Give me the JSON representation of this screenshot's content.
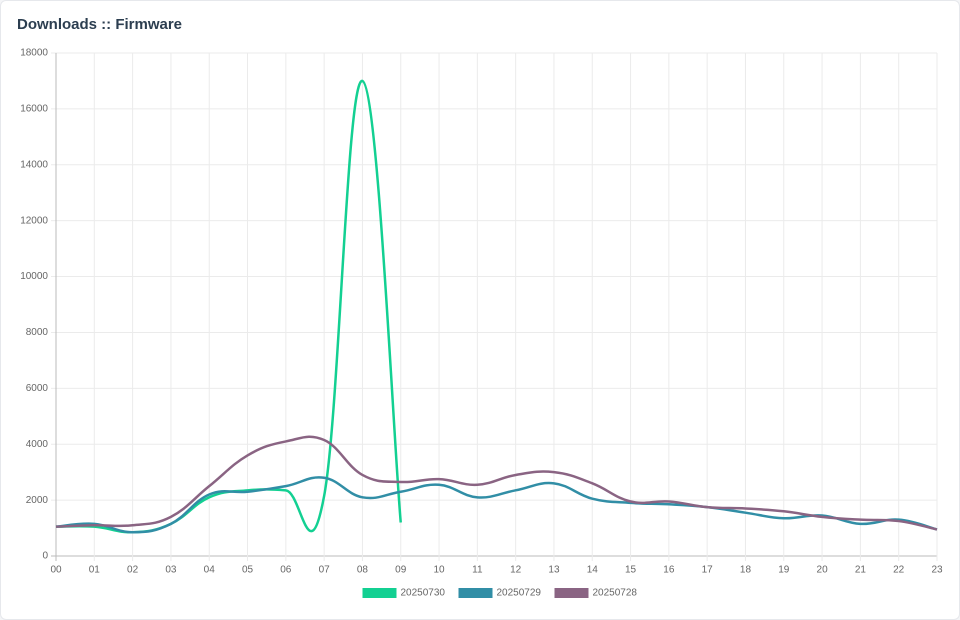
{
  "chart_data": {
    "type": "line",
    "title": "Downloads :: Firmware",
    "categories": [
      "00",
      "01",
      "02",
      "03",
      "04",
      "05",
      "06",
      "07",
      "08",
      "09",
      "10",
      "11",
      "12",
      "13",
      "14",
      "15",
      "16",
      "17",
      "18",
      "19",
      "20",
      "21",
      "22",
      "23"
    ],
    "series": [
      {
        "name": "20250730",
        "color": "#13d092",
        "values": [
          1050,
          1050,
          850,
          1150,
          2100,
          2350,
          2350,
          2150,
          17000,
          1200,
          null,
          null,
          null,
          null,
          null,
          null,
          null,
          null,
          null,
          null,
          null,
          null,
          null,
          null
        ]
      },
      {
        "name": "20250729",
        "color": "#318ea6",
        "values": [
          1050,
          1150,
          850,
          1150,
          2200,
          2300,
          2500,
          2800,
          2100,
          2300,
          2550,
          2100,
          2350,
          2600,
          2050,
          1900,
          1850,
          1750,
          1550,
          1350,
          1450,
          1150,
          1300,
          950
        ]
      },
      {
        "name": "20250728",
        "color": "#8a6483",
        "values": [
          1050,
          1100,
          1100,
          1400,
          2500,
          3600,
          4100,
          4150,
          2900,
          2650,
          2750,
          2550,
          2900,
          3000,
          2600,
          1950,
          1950,
          1750,
          1700,
          1600,
          1400,
          1300,
          1250,
          950
        ]
      }
    ],
    "ylim": [
      0,
      18000
    ],
    "yticks": [
      0,
      2000,
      4000,
      6000,
      8000,
      10000,
      12000,
      14000,
      16000,
      18000
    ],
    "grid": true,
    "legend": "bottom"
  }
}
